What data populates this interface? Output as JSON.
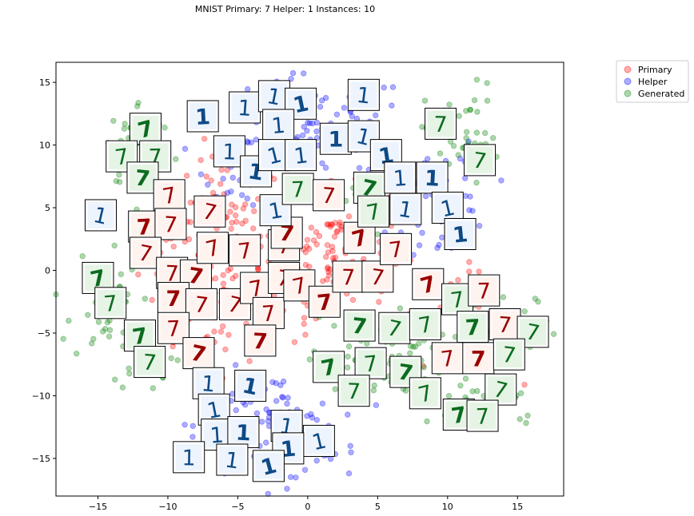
{
  "chart_data": {
    "type": "scatter",
    "title": "MNIST Primary: 7 Helper: 1 Instances: 10",
    "xlim": [
      -18,
      18.3
    ],
    "ylim": [
      -18,
      16.6
    ],
    "xticks": [
      -15,
      -10,
      -5,
      0,
      5,
      10,
      15
    ],
    "yticks": [
      15,
      10,
      5,
      0,
      -5,
      -10,
      -15
    ],
    "grid": false,
    "legend_position": "outside top-right",
    "legend": [
      {
        "name": "Primary",
        "color": "#ff0000"
      },
      {
        "name": "Helper",
        "color": "#0000ff"
      },
      {
        "name": "Generated",
        "color": "#008000"
      }
    ],
    "series": [
      {
        "name": "Primary",
        "color": "#ff0000",
        "clusters": [
          {
            "cx": -6,
            "cy": 3,
            "sx": 2.2,
            "sy": 3,
            "n": 95
          },
          {
            "cx": -8,
            "cy": -3,
            "sx": 1.8,
            "sy": 2.5,
            "n": 60
          },
          {
            "cx": 1.8,
            "cy": 1.5,
            "sx": 2,
            "sy": 2.5,
            "n": 95
          },
          {
            "cx": -3,
            "cy": -2.5,
            "sx": 3,
            "sy": 1.8,
            "n": 55
          },
          {
            "cx": 11,
            "cy": -4,
            "sx": 2,
            "sy": 2,
            "n": 25
          }
        ]
      },
      {
        "name": "Helper",
        "color": "#0000ff",
        "clusters": [
          {
            "cx": 0.5,
            "cy": 11.5,
            "sx": 3.5,
            "sy": 2,
            "n": 95
          },
          {
            "cx": 9.5,
            "cy": 5.5,
            "sx": 1.8,
            "sy": 2.5,
            "n": 55
          },
          {
            "cx": -4.5,
            "cy": 8,
            "sx": 1.4,
            "sy": 1.6,
            "n": 30
          },
          {
            "cx": -3,
            "cy": -12.5,
            "sx": 2.5,
            "sy": 2.2,
            "n": 95
          },
          {
            "cx": 1,
            "cy": -14,
            "sx": 1.2,
            "sy": 1.2,
            "n": 25
          }
        ]
      },
      {
        "name": "Generated",
        "color": "#008000",
        "clusters": [
          {
            "cx": -12,
            "cy": 10,
            "sx": 1.2,
            "sy": 1.8,
            "n": 50
          },
          {
            "cx": -14.5,
            "cy": -2.5,
            "sx": 1.2,
            "sy": 2.5,
            "n": 30
          },
          {
            "cx": -11.5,
            "cy": -6.5,
            "sx": 1.2,
            "sy": 1.5,
            "n": 25
          },
          {
            "cx": 5,
            "cy": -7,
            "sx": 2.5,
            "sy": 1.7,
            "n": 75
          },
          {
            "cx": 11,
            "cy": 10.5,
            "sx": 1.3,
            "sy": 2.2,
            "n": 45
          },
          {
            "cx": 15,
            "cy": -5,
            "sx": 1.5,
            "sy": 1.5,
            "n": 35
          },
          {
            "cx": 13,
            "cy": -10.5,
            "sx": 2,
            "sy": 1.2,
            "n": 30
          },
          {
            "cx": 4.5,
            "cy": 5.5,
            "sx": 1,
            "sy": 1,
            "n": 15
          }
        ]
      }
    ],
    "thumbnails": [
      {
        "x": -11.6,
        "y": 11.3,
        "series": "Generated",
        "digit": "7"
      },
      {
        "x": -13.3,
        "y": 9.1,
        "series": "Generated",
        "digit": "7"
      },
      {
        "x": -10.9,
        "y": 9.1,
        "series": "Generated",
        "digit": "7"
      },
      {
        "x": -11.8,
        "y": 7.4,
        "series": "Generated",
        "digit": "7"
      },
      {
        "x": -14.8,
        "y": 4.4,
        "series": "Helper",
        "digit": "1"
      },
      {
        "x": -9.9,
        "y": 6.0,
        "series": "Primary",
        "digit": "7"
      },
      {
        "x": -11.7,
        "y": 3.5,
        "series": "Primary",
        "digit": "7"
      },
      {
        "x": -9.8,
        "y": 3.7,
        "series": "Primary",
        "digit": "7"
      },
      {
        "x": -11.6,
        "y": 1.4,
        "series": "Primary",
        "digit": "7"
      },
      {
        "x": -15.0,
        "y": -0.6,
        "series": "Generated",
        "digit": "7"
      },
      {
        "x": -14.1,
        "y": -2.6,
        "series": "Generated",
        "digit": "7"
      },
      {
        "x": -9.7,
        "y": -0.2,
        "series": "Primary",
        "digit": "7"
      },
      {
        "x": -8.0,
        "y": -0.4,
        "series": "Primary",
        "digit": "7"
      },
      {
        "x": -6.8,
        "y": 1.8,
        "series": "Primary",
        "digit": "7"
      },
      {
        "x": -4.5,
        "y": 1.6,
        "series": "Primary",
        "digit": "7"
      },
      {
        "x": -9.6,
        "y": -2.2,
        "series": "Primary",
        "digit": "7"
      },
      {
        "x": -7.6,
        "y": -2.7,
        "series": "Primary",
        "digit": "7"
      },
      {
        "x": -5.2,
        "y": -2.7,
        "series": "Primary",
        "digit": "7"
      },
      {
        "x": -12.0,
        "y": -5.2,
        "series": "Generated",
        "digit": "7"
      },
      {
        "x": -9.6,
        "y": -4.6,
        "series": "Primary",
        "digit": "7"
      },
      {
        "x": -11.3,
        "y": -7.3,
        "series": "Generated",
        "digit": "7"
      },
      {
        "x": -7.8,
        "y": -6.6,
        "series": "Primary",
        "digit": "7"
      },
      {
        "x": -3.7,
        "y": -1.4,
        "series": "Primary",
        "digit": "7"
      },
      {
        "x": -2.8,
        "y": -3.4,
        "series": "Primary",
        "digit": "7"
      },
      {
        "x": -3.4,
        "y": -5.6,
        "series": "Primary",
        "digit": "7"
      },
      {
        "x": -1.7,
        "y": -0.6,
        "series": "Primary",
        "digit": "7"
      },
      {
        "x": -0.6,
        "y": -1.2,
        "series": "Primary",
        "digit": "7"
      },
      {
        "x": 1.2,
        "y": -2.5,
        "series": "Primary",
        "digit": "7"
      },
      {
        "x": 2.9,
        "y": -0.5,
        "series": "Primary",
        "digit": "7"
      },
      {
        "x": 5.0,
        "y": -0.5,
        "series": "Primary",
        "digit": "7"
      },
      {
        "x": 3.7,
        "y": 2.6,
        "series": "Primary",
        "digit": "7"
      },
      {
        "x": 6.3,
        "y": 1.7,
        "series": "Primary",
        "digit": "7"
      },
      {
        "x": -1.7,
        "y": 2.0,
        "series": "Primary",
        "digit": "7"
      },
      {
        "x": -1.5,
        "y": 3.0,
        "series": "Primary",
        "digit": "7"
      },
      {
        "x": -7.0,
        "y": 4.7,
        "series": "Primary",
        "digit": "7"
      },
      {
        "x": -2.3,
        "y": 4.8,
        "series": "Helper",
        "digit": "1"
      },
      {
        "x": -7.5,
        "y": 12.3,
        "series": "Helper",
        "digit": "1"
      },
      {
        "x": -4.5,
        "y": 13.0,
        "series": "Helper",
        "digit": "1"
      },
      {
        "x": -2.4,
        "y": 13.9,
        "series": "Helper",
        "digit": "1"
      },
      {
        "x": -0.5,
        "y": 13.3,
        "series": "Helper",
        "digit": "1"
      },
      {
        "x": -2.1,
        "y": 11.6,
        "series": "Helper",
        "digit": "1"
      },
      {
        "x": -5.6,
        "y": 9.5,
        "series": "Helper",
        "digit": "1"
      },
      {
        "x": -3.7,
        "y": 7.9,
        "series": "Helper",
        "digit": "1"
      },
      {
        "x": -2.4,
        "y": 9.2,
        "series": "Helper",
        "digit": "1"
      },
      {
        "x": -0.5,
        "y": 9.2,
        "series": "Helper",
        "digit": "1"
      },
      {
        "x": 2.0,
        "y": 10.5,
        "series": "Helper",
        "digit": "1"
      },
      {
        "x": 4.0,
        "y": 14.0,
        "series": "Helper",
        "digit": "1"
      },
      {
        "x": 4.0,
        "y": 10.7,
        "series": "Helper",
        "digit": "1"
      },
      {
        "x": 5.6,
        "y": 9.2,
        "series": "Helper",
        "digit": "1"
      },
      {
        "x": -0.7,
        "y": 6.5,
        "series": "Generated",
        "digit": "7"
      },
      {
        "x": 1.5,
        "y": 6.0,
        "series": "Primary",
        "digit": "7"
      },
      {
        "x": 4.4,
        "y": 6.6,
        "series": "Generated",
        "digit": "7"
      },
      {
        "x": 4.7,
        "y": 4.7,
        "series": "Generated",
        "digit": "7"
      },
      {
        "x": 6.6,
        "y": 7.4,
        "series": "Helper",
        "digit": "1"
      },
      {
        "x": 8.9,
        "y": 7.4,
        "series": "Helper",
        "digit": "1"
      },
      {
        "x": 7.0,
        "y": 4.9,
        "series": "Helper",
        "digit": "1"
      },
      {
        "x": 10.0,
        "y": 5.0,
        "series": "Helper",
        "digit": "1"
      },
      {
        "x": 10.9,
        "y": 2.9,
        "series": "Helper",
        "digit": "1"
      },
      {
        "x": 9.5,
        "y": 11.7,
        "series": "Generated",
        "digit": "7"
      },
      {
        "x": 12.3,
        "y": 8.8,
        "series": "Generated",
        "digit": "7"
      },
      {
        "x": 8.6,
        "y": -1.1,
        "series": "Primary",
        "digit": "7"
      },
      {
        "x": 10.7,
        "y": -2.3,
        "series": "Generated",
        "digit": "7"
      },
      {
        "x": 12.6,
        "y": -1.6,
        "series": "Primary",
        "digit": "7"
      },
      {
        "x": 3.7,
        "y": -4.4,
        "series": "Generated",
        "digit": "7"
      },
      {
        "x": 6.2,
        "y": -4.6,
        "series": "Generated",
        "digit": "7"
      },
      {
        "x": 8.4,
        "y": -4.3,
        "series": "Generated",
        "digit": "7"
      },
      {
        "x": 11.8,
        "y": -4.5,
        "series": "Generated",
        "digit": "7"
      },
      {
        "x": 14.1,
        "y": -4.3,
        "series": "Primary",
        "digit": "7"
      },
      {
        "x": 16.1,
        "y": -4.9,
        "series": "Generated",
        "digit": "7"
      },
      {
        "x": 1.5,
        "y": -7.7,
        "series": "Generated",
        "digit": "7"
      },
      {
        "x": 4.5,
        "y": -7.4,
        "series": "Generated",
        "digit": "7"
      },
      {
        "x": 3.3,
        "y": -9.6,
        "series": "Generated",
        "digit": "7"
      },
      {
        "x": 7.0,
        "y": -8.1,
        "series": "Generated",
        "digit": "7"
      },
      {
        "x": 8.4,
        "y": -9.8,
        "series": "Generated",
        "digit": "7"
      },
      {
        "x": 10.0,
        "y": -7.0,
        "series": "Primary",
        "digit": "7"
      },
      {
        "x": 12.2,
        "y": -7.0,
        "series": "Primary",
        "digit": "7"
      },
      {
        "x": 14.4,
        "y": -6.7,
        "series": "Generated",
        "digit": "7"
      },
      {
        "x": 13.8,
        "y": -9.5,
        "series": "Generated",
        "digit": "7"
      },
      {
        "x": 10.8,
        "y": -11.5,
        "series": "Generated",
        "digit": "7"
      },
      {
        "x": 12.5,
        "y": -11.6,
        "series": "Generated",
        "digit": "7"
      },
      {
        "x": -7.1,
        "y": -9.0,
        "series": "Helper",
        "digit": "1"
      },
      {
        "x": -4.1,
        "y": -9.2,
        "series": "Helper",
        "digit": "1"
      },
      {
        "x": -6.7,
        "y": -11.1,
        "series": "Helper",
        "digit": "1"
      },
      {
        "x": -6.5,
        "y": -13.1,
        "series": "Helper",
        "digit": "1"
      },
      {
        "x": -4.6,
        "y": -12.9,
        "series": "Helper",
        "digit": "1"
      },
      {
        "x": -1.5,
        "y": -12.4,
        "series": "Helper",
        "digit": "1"
      },
      {
        "x": 0.8,
        "y": -13.6,
        "series": "Helper",
        "digit": "1"
      },
      {
        "x": -1.4,
        "y": -14.2,
        "series": "Helper",
        "digit": "1"
      },
      {
        "x": -8.5,
        "y": -14.9,
        "series": "Helper",
        "digit": "1"
      },
      {
        "x": -5.4,
        "y": -15.1,
        "series": "Helper",
        "digit": "1"
      },
      {
        "x": -2.8,
        "y": -15.6,
        "series": "Helper",
        "digit": "1"
      }
    ]
  }
}
